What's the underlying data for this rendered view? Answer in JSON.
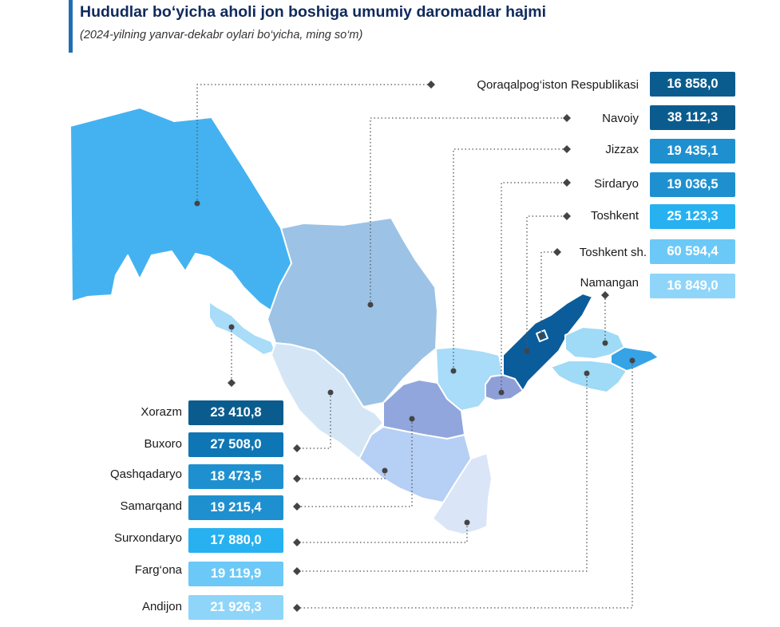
{
  "header": {
    "title": "Hududlar bo‘yicha aholi jon boshiga umumiy daromadlar hajmi",
    "subtitle": "(2024-yilning yanvar-dekabr oylari bo‘yicha, ming so‘m)"
  },
  "regions": [
    {
      "id": "qoraqalpogiston",
      "name": "Qoraqalpog‘iston Respublikasi",
      "value": "16 858,0",
      "box_color": "#0b5c8e",
      "fill": "#44b2f0"
    },
    {
      "id": "navoiy",
      "name": "Navoiy",
      "value": "38 112,3",
      "box_color": "#0b5c8e",
      "fill": "#9cc3e6"
    },
    {
      "id": "jizzax",
      "name": "Jizzax",
      "value": "19 435,1",
      "box_color": "#1f90cf",
      "fill": "#a8dcf8"
    },
    {
      "id": "sirdaryo",
      "name": "Sirdaryo",
      "value": "19 036,5",
      "box_color": "#1f90cf",
      "fill": "#8e9fd8"
    },
    {
      "id": "toshkent",
      "name": "Toshkent",
      "value": "25 123,3",
      "box_color": "#27b1f0",
      "fill": "#0b5c9b"
    },
    {
      "id": "toshkent_sh",
      "name": "Toshkent sh.",
      "value": "60 594,4",
      "box_color": "#6cc9f7",
      "fill": "#0b5c9b"
    },
    {
      "id": "namangan",
      "name": "Namangan",
      "value": "16 849,0",
      "box_color": "#8fd5f9",
      "fill": "#9fdaf6"
    },
    {
      "id": "xorazm",
      "name": "Xorazm",
      "value": "23 410,8",
      "box_color": "#0b5c8e",
      "fill": "#a8dcf8"
    },
    {
      "id": "buxoro",
      "name": "Buxoro",
      "value": "27 508,0",
      "box_color": "#0e76b5",
      "fill": "#d4e6f5"
    },
    {
      "id": "qashqadaryo",
      "name": "Qashqadaryo",
      "value": "18 473,5",
      "box_color": "#1f90cf",
      "fill": "#b6cff4"
    },
    {
      "id": "samarqand",
      "name": "Samarqand",
      "value": "19 215,4",
      "box_color": "#1f90cf",
      "fill": "#90a6dc"
    },
    {
      "id": "surxondaryo",
      "name": "Surxondaryo",
      "value": "17 880,0",
      "box_color": "#27b1f0",
      "fill": "#dbe5f8"
    },
    {
      "id": "fargona",
      "name": "Farg‘ona",
      "value": "19 119,9",
      "box_color": "#6cc9f7",
      "fill": "#9fdaf6"
    },
    {
      "id": "andijon",
      "name": "Andijon",
      "value": "21 926,3",
      "box_color": "#8fd5f9",
      "fill": "#36a3e6"
    }
  ]
}
